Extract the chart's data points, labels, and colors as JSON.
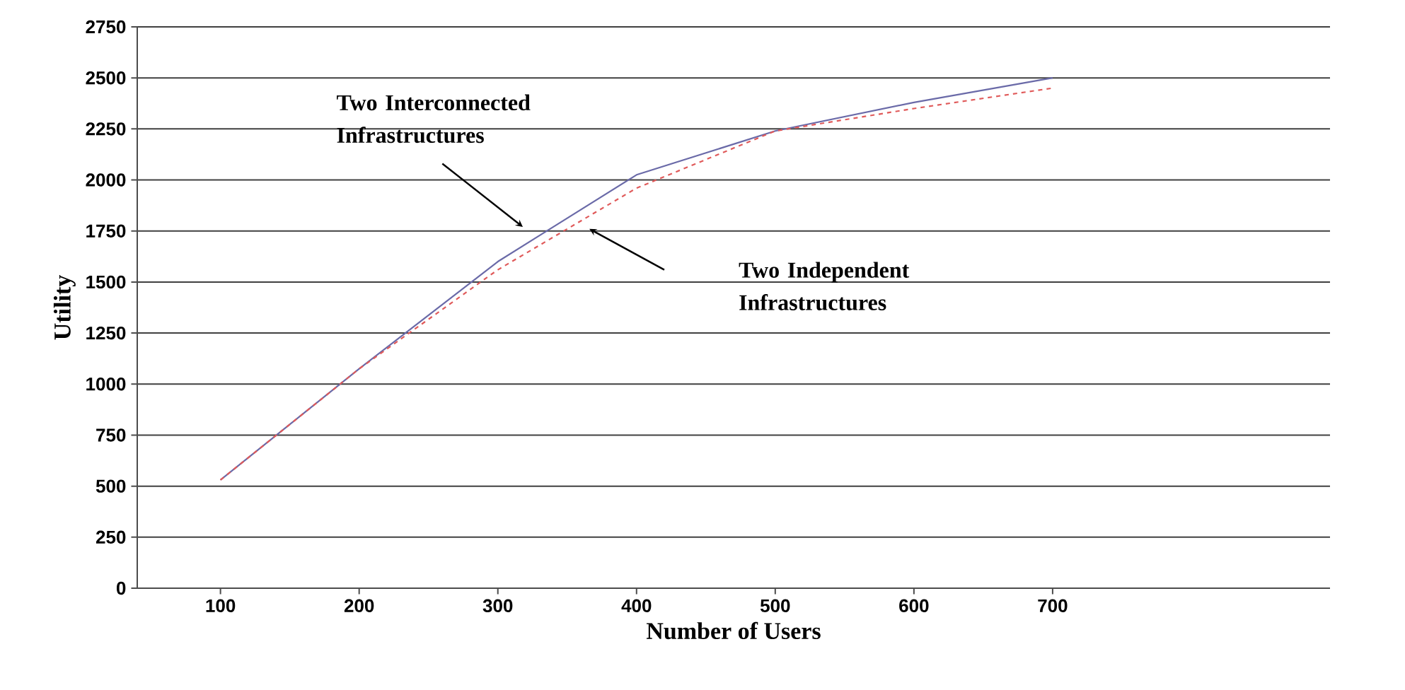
{
  "chart_data": {
    "type": "line",
    "xlabel": "Number of Users",
    "ylabel": "Utility",
    "x": [
      100,
      200,
      300,
      400,
      500,
      600,
      700
    ],
    "series": [
      {
        "color": "#6a6aa8",
        "line_style": "solid",
        "values": [
          530,
          1075,
          1600,
          2025,
          2240,
          2380,
          2500
        ]
      },
      {
        "color": "#e05a5a",
        "line_style": "dashed",
        "values": [
          530,
          1075,
          1560,
          1960,
          2240,
          2350,
          2450
        ]
      }
    ],
    "xlim": [
      40,
      900
    ],
    "ylim": [
      0,
      2750
    ],
    "xticks": [
      100,
      200,
      300,
      400,
      500,
      600,
      700
    ],
    "yticks": [
      0,
      250,
      500,
      750,
      1000,
      1250,
      1500,
      1750,
      2000,
      2250,
      2500,
      2750
    ],
    "grid": "y",
    "marker": "none",
    "annotations": [
      "Two Interconnected Infrastructures",
      "Two Independent Infrastructures"
    ]
  }
}
